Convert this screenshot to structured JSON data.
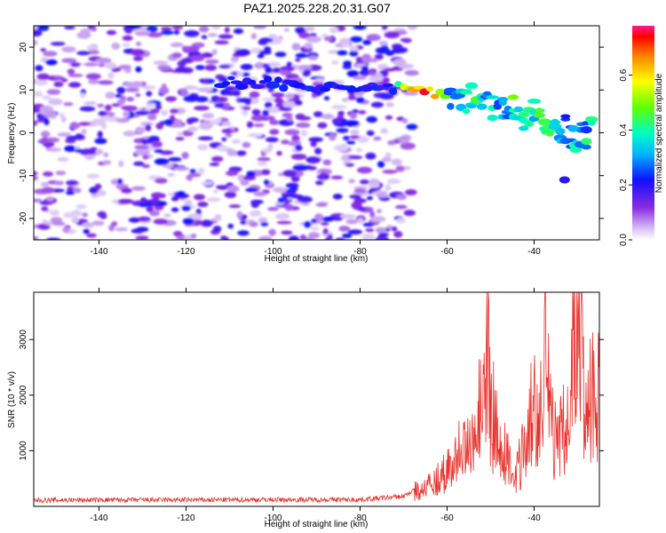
{
  "title": "PAZ1.2025.228.20.31.G07",
  "chart_data": [
    {
      "type": "heatmap",
      "xlabel": "Height of straight line (km)",
      "ylabel": "Frequency (Hz)",
      "xlim": [
        -155,
        -25
      ],
      "ylim": [
        -25,
        25
      ],
      "xticks": [
        -140,
        -120,
        -100,
        -80,
        -60,
        -40
      ],
      "yticks": [
        -20,
        -10,
        0,
        10,
        20
      ],
      "noise_region_x": [
        -155,
        -68
      ],
      "signal_trace": [
        {
          "x": -112,
          "y": 12
        },
        {
          "x": -100,
          "y": 11.5
        },
        {
          "x": -90,
          "y": 11
        },
        {
          "x": -80,
          "y": 10.5
        },
        {
          "x": -72,
          "y": 10.5
        },
        {
          "x": -66,
          "y": 10
        },
        {
          "x": -60,
          "y": 9
        },
        {
          "x": -55,
          "y": 8
        },
        {
          "x": -50,
          "y": 6
        },
        {
          "x": -45,
          "y": 5
        },
        {
          "x": -40,
          "y": 4
        },
        {
          "x": -35,
          "y": 2
        },
        {
          "x": -30,
          "y": -1
        },
        {
          "x": -26,
          "y": 0
        }
      ],
      "colorbar": {
        "label": "Normalized spectral amplitude",
        "range": [
          0,
          0.78
        ],
        "ticks": [
          0.0,
          0.2,
          0.4,
          0.6
        ]
      },
      "grid": false
    },
    {
      "type": "line",
      "xlabel": "Height of straight line (km)",
      "ylabel": "SNR (10 * v/v)",
      "xlim": [
        -155,
        -25
      ],
      "ylim": [
        0,
        3850
      ],
      "xticks": [
        -140,
        -120,
        -100,
        -80,
        -60,
        -40
      ],
      "yticks": [
        1000,
        2000,
        3000
      ],
      "color": "#e8322b",
      "x": [
        -155,
        -140,
        -120,
        -100,
        -80,
        -70,
        -65,
        -60,
        -58,
        -56,
        -54,
        -52,
        -51,
        -50,
        -48,
        -46,
        -44,
        -42,
        -41,
        -40,
        -39,
        -38,
        -37.5,
        -37,
        -36,
        -34,
        -32,
        -31,
        -30,
        -29,
        -28,
        -27,
        -26,
        -25
      ],
      "values": [
        110,
        115,
        115,
        120,
        120,
        180,
        420,
        700,
        1000,
        1200,
        1600,
        2300,
        3450,
        2100,
        1200,
        1000,
        800,
        1200,
        2100,
        2400,
        1500,
        2500,
        3850,
        2700,
        1600,
        1500,
        1700,
        3600,
        3200,
        3550,
        1800,
        2200,
        2600,
        2400
      ],
      "grid": false
    }
  ]
}
